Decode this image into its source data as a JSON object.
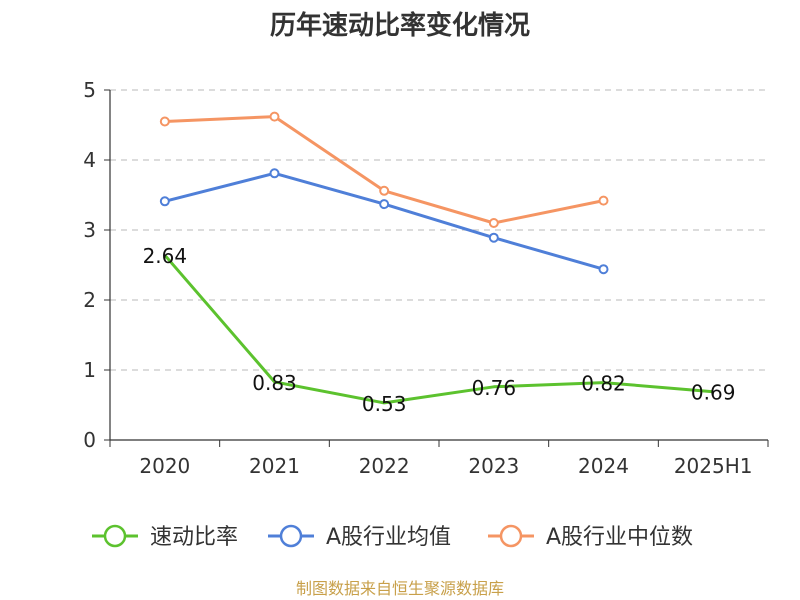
{
  "chart_data": {
    "type": "line",
    "title": "历年速动比率变化情况",
    "categories": [
      "2020",
      "2021",
      "2022",
      "2023",
      "2024",
      "2025H1"
    ],
    "ylim": [
      0,
      5
    ],
    "yticks": [
      "0",
      "1",
      "2",
      "3",
      "4",
      "5"
    ],
    "grid": true,
    "legend_position": "bottom",
    "series": [
      {
        "name": "速动比率",
        "color": "#5cc22e",
        "values": [
          2.64,
          0.83,
          0.53,
          0.76,
          0.82,
          0.69
        ],
        "labels": [
          "2.64",
          "0.83",
          "0.53",
          "0.76",
          "0.82",
          "0.69"
        ]
      },
      {
        "name": "A股行业均值",
        "color": "#4f7fd8",
        "values": [
          3.41,
          3.81,
          3.37,
          2.89,
          2.44,
          null
        ]
      },
      {
        "name": "A股行业中位数",
        "color": "#f59563",
        "values": [
          4.55,
          4.62,
          3.56,
          3.1,
          3.42,
          null
        ]
      }
    ],
    "source": "制图数据来自恒生聚源数据库"
  }
}
